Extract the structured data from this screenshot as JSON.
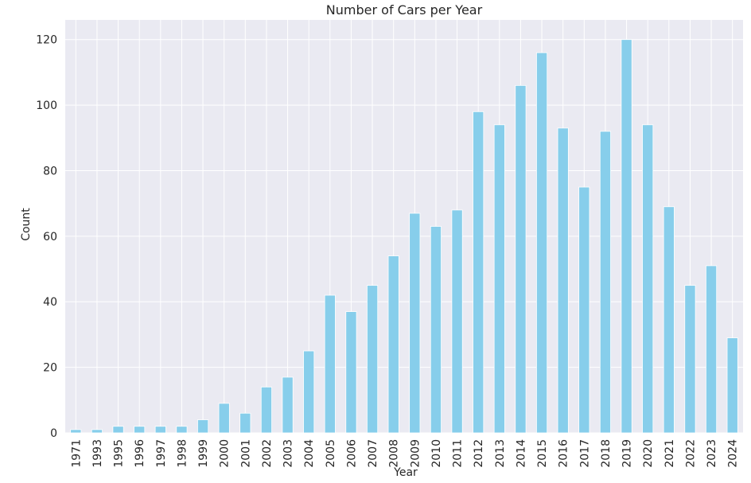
{
  "chart_data": {
    "type": "bar",
    "title": "Number of Cars per Year",
    "xlabel": "Year",
    "ylabel": "Count",
    "ylim": [
      0,
      126
    ],
    "yticks": [
      0,
      20,
      40,
      60,
      80,
      100,
      120
    ],
    "grid": true,
    "legend": "none",
    "bar_color": "#87ceeb",
    "background_color": "#eaeaf2",
    "grid_color": "#ffffff",
    "categories": [
      "1971",
      "1993",
      "1995",
      "1996",
      "1997",
      "1998",
      "1999",
      "2000",
      "2001",
      "2002",
      "2003",
      "2004",
      "2005",
      "2006",
      "2007",
      "2008",
      "2009",
      "2010",
      "2011",
      "2012",
      "2013",
      "2014",
      "2015",
      "2016",
      "2017",
      "2018",
      "2019",
      "2020",
      "2021",
      "2022",
      "2023",
      "2024"
    ],
    "values": [
      1,
      1,
      2,
      2,
      2,
      2,
      4,
      9,
      6,
      14,
      17,
      25,
      42,
      37,
      45,
      54,
      67,
      63,
      68,
      98,
      94,
      106,
      116,
      93,
      75,
      92,
      120,
      94,
      69,
      45,
      51,
      29
    ]
  }
}
